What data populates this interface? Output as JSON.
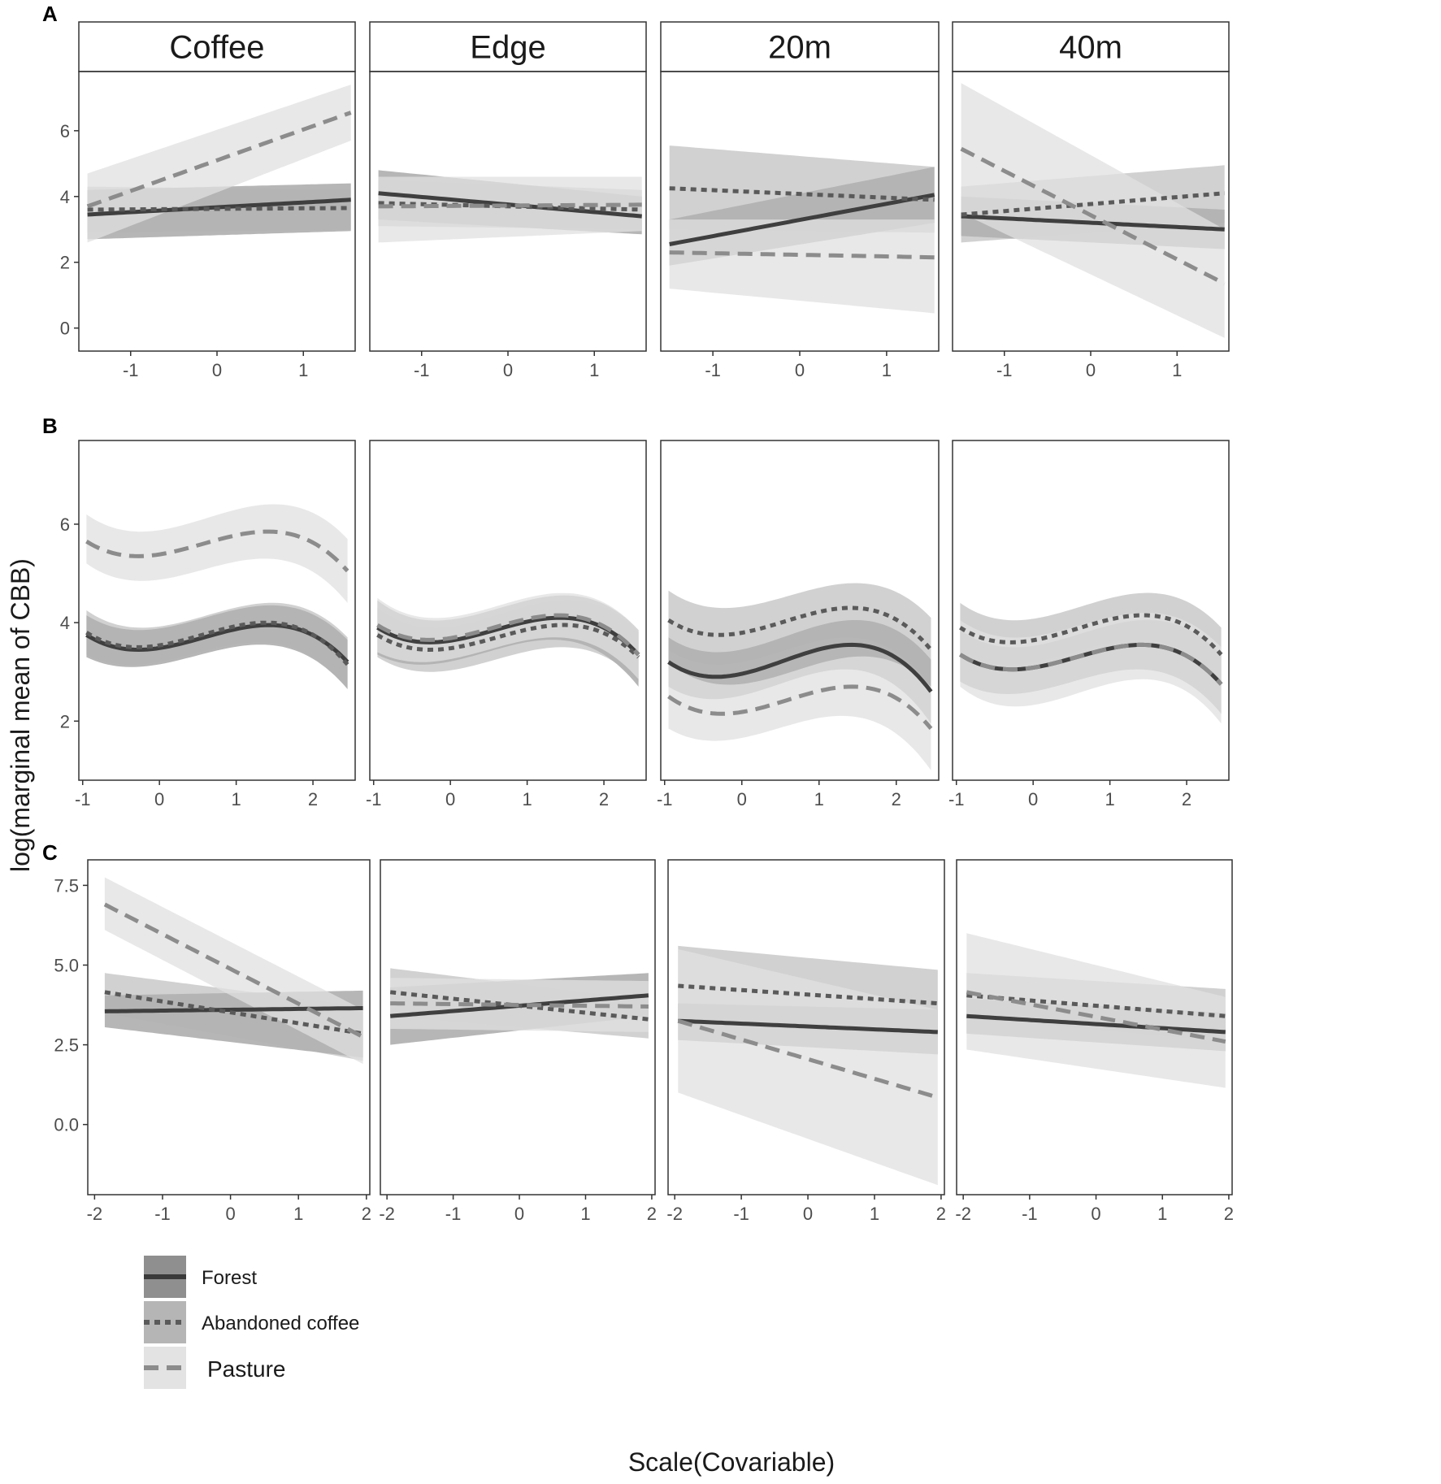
{
  "figure": {
    "ylabel": "log(marginal mean of CBB)",
    "xlabel": "Scale(Covariable)",
    "legend": {
      "items": [
        {
          "label": "Forest",
          "line": "solid",
          "color": "#3a3a3a",
          "band": "#8f8f8f"
        },
        {
          "label": "Abandoned coffee",
          "line": "dotted",
          "color": "#5a5a5a",
          "band": "#b5b5b5"
        },
        {
          "label": "Pasture",
          "line": "dashed",
          "color": "#8c8c8c",
          "band": "#e3e3e3"
        }
      ]
    }
  },
  "chart_data": [
    {
      "row": "A",
      "type": "line",
      "facets": [
        "Coffee",
        "Edge",
        "20m",
        "40m"
      ],
      "xlim": [
        -1.6,
        1.6
      ],
      "xticks": [
        -1,
        0,
        1
      ],
      "ylim": [
        -0.7,
        7.8
      ],
      "yticks": [
        0,
        2,
        4,
        6
      ],
      "shape": "linear",
      "panels": [
        {
          "facet": "Coffee",
          "series": [
            {
              "name": "Forest",
              "x": [
                -1.5,
                1.55
              ],
              "y": [
                3.45,
                3.9
              ],
              "lo": [
                2.7,
                2.95
              ],
              "hi": [
                4.2,
                4.4
              ]
            },
            {
              "name": "Abandoned coffee",
              "x": [
                -1.5,
                1.55
              ],
              "y": [
                3.6,
                3.65
              ],
              "lo": [
                2.9,
                3.0
              ],
              "hi": [
                4.3,
                4.2
              ]
            },
            {
              "name": "Pasture",
              "x": [
                -1.5,
                1.55
              ],
              "y": [
                3.7,
                6.55
              ],
              "lo": [
                2.6,
                5.7
              ],
              "hi": [
                4.7,
                7.4
              ]
            }
          ]
        },
        {
          "facet": "Edge",
          "series": [
            {
              "name": "Forest",
              "x": [
                -1.5,
                1.55
              ],
              "y": [
                4.1,
                3.4
              ],
              "lo": [
                3.3,
                2.85
              ],
              "hi": [
                4.8,
                4.0
              ]
            },
            {
              "name": "Abandoned coffee",
              "x": [
                -1.5,
                1.55
              ],
              "y": [
                3.8,
                3.6
              ],
              "lo": [
                3.1,
                3.0
              ],
              "hi": [
                4.5,
                4.2
              ]
            },
            {
              "name": "Pasture",
              "x": [
                -1.5,
                1.55
              ],
              "y": [
                3.7,
                3.75
              ],
              "lo": [
                2.6,
                2.95
              ],
              "hi": [
                4.6,
                4.6
              ]
            }
          ]
        },
        {
          "facet": "20m",
          "series": [
            {
              "name": "Forest",
              "x": [
                -1.5,
                1.55
              ],
              "y": [
                2.55,
                4.05
              ],
              "lo": [
                1.9,
                3.2
              ],
              "hi": [
                3.3,
                4.9
              ]
            },
            {
              "name": "Abandoned coffee",
              "x": [
                -1.5,
                1.55
              ],
              "y": [
                4.25,
                3.9
              ],
              "lo": [
                3.0,
                2.9
              ],
              "hi": [
                5.55,
                4.9
              ]
            },
            {
              "name": "Pasture",
              "x": [
                -1.5,
                1.55
              ],
              "y": [
                2.3,
                2.15
              ],
              "lo": [
                1.2,
                0.45
              ],
              "hi": [
                3.3,
                3.3
              ]
            }
          ]
        },
        {
          "facet": "40m",
          "series": [
            {
              "name": "Forest",
              "x": [
                -1.5,
                1.55
              ],
              "y": [
                3.4,
                3.0
              ],
              "lo": [
                2.8,
                2.4
              ],
              "hi": [
                4.0,
                3.6
              ]
            },
            {
              "name": "Abandoned coffee",
              "x": [
                -1.5,
                1.55
              ],
              "y": [
                3.45,
                4.1
              ],
              "lo": [
                2.6,
                3.2
              ],
              "hi": [
                4.3,
                4.95
              ]
            },
            {
              "name": "Pasture",
              "x": [
                -1.5,
                1.55
              ],
              "y": [
                5.45,
                1.35
              ],
              "lo": [
                3.5,
                -0.3
              ],
              "hi": [
                7.45,
                3.0
              ]
            }
          ]
        }
      ]
    },
    {
      "row": "B",
      "type": "line",
      "facets": [
        "Coffee",
        "Edge",
        "20m",
        "40m"
      ],
      "xlim": [
        -1.05,
        2.55
      ],
      "xticks": [
        -1,
        0,
        1,
        2
      ],
      "ylim": [
        0.8,
        7.7
      ],
      "yticks": [
        2,
        4,
        6
      ],
      "shape": "cubic",
      "panels": [
        {
          "facet": "Coffee",
          "series": [
            {
              "name": "Forest",
              "x": [
                -0.95,
                -0.3,
                1.4,
                2.45
              ],
              "y": [
                3.75,
                3.45,
                3.95,
                3.2
              ],
              "lo": [
                3.3,
                3.1,
                3.55,
                2.65
              ],
              "hi": [
                4.15,
                3.85,
                4.35,
                3.65
              ]
            },
            {
              "name": "Abandoned coffee",
              "x": [
                -0.95,
                -0.3,
                1.4,
                2.45
              ],
              "y": [
                3.8,
                3.5,
                4.0,
                3.15
              ],
              "lo": [
                3.35,
                3.15,
                3.6,
                2.65
              ],
              "hi": [
                4.25,
                3.9,
                4.4,
                3.7
              ]
            },
            {
              "name": "Pasture",
              "x": [
                -0.95,
                -0.3,
                1.4,
                2.45
              ],
              "y": [
                5.65,
                5.35,
                5.85,
                5.05
              ],
              "lo": [
                5.2,
                4.85,
                5.3,
                4.4
              ],
              "hi": [
                6.2,
                5.85,
                6.4,
                5.7
              ]
            }
          ]
        },
        {
          "facet": "Edge",
          "series": [
            {
              "name": "Forest",
              "x": [
                -0.95,
                -0.3,
                1.4,
                2.45
              ],
              "y": [
                3.9,
                3.6,
                4.1,
                3.35
              ],
              "lo": [
                3.35,
                3.15,
                3.65,
                2.7
              ],
              "hi": [
                4.45,
                4.05,
                4.55,
                3.85
              ]
            },
            {
              "name": "Abandoned coffee",
              "x": [
                -0.95,
                -0.3,
                1.4,
                2.45
              ],
              "y": [
                3.75,
                3.45,
                3.95,
                3.3
              ],
              "lo": [
                3.3,
                3.0,
                3.5,
                2.8
              ],
              "hi": [
                4.3,
                3.9,
                4.45,
                3.8
              ]
            },
            {
              "name": "Pasture",
              "x": [
                -0.95,
                -0.3,
                1.4,
                2.45
              ],
              "y": [
                3.95,
                3.65,
                4.15,
                3.35
              ],
              "lo": [
                3.4,
                3.2,
                3.7,
                2.85
              ],
              "hi": [
                4.5,
                4.1,
                4.6,
                3.85
              ]
            }
          ]
        },
        {
          "facet": "20m",
          "series": [
            {
              "name": "Forest",
              "x": [
                -0.95,
                -0.3,
                1.4,
                2.45
              ],
              "y": [
                3.2,
                2.9,
                3.55,
                2.6
              ],
              "lo": [
                2.7,
                2.45,
                3.05,
                1.95
              ],
              "hi": [
                3.7,
                3.4,
                4.05,
                3.25
              ]
            },
            {
              "name": "Abandoned coffee",
              "x": [
                -0.95,
                -0.3,
                1.4,
                2.45
              ],
              "y": [
                4.05,
                3.75,
                4.3,
                3.45
              ],
              "lo": [
                3.45,
                3.15,
                3.7,
                2.7
              ],
              "hi": [
                4.65,
                4.3,
                4.8,
                4.1
              ]
            },
            {
              "name": "Pasture",
              "x": [
                -0.95,
                -0.3,
                1.4,
                2.45
              ],
              "y": [
                2.5,
                2.15,
                2.7,
                1.85
              ],
              "lo": [
                1.85,
                1.6,
                2.1,
                1.0
              ],
              "hi": [
                3.2,
                2.75,
                3.3,
                2.7
              ]
            }
          ]
        },
        {
          "facet": "40m",
          "series": [
            {
              "name": "Forest",
              "x": [
                -0.95,
                -0.3,
                1.4,
                2.45
              ],
              "y": [
                3.35,
                3.05,
                3.55,
                2.75
              ],
              "lo": [
                2.8,
                2.55,
                3.05,
                2.15
              ],
              "hi": [
                3.85,
                3.5,
                4.05,
                3.35
              ]
            },
            {
              "name": "Abandoned coffee",
              "x": [
                -0.95,
                -0.3,
                1.4,
                2.45
              ],
              "y": [
                3.9,
                3.6,
                4.15,
                3.35
              ],
              "lo": [
                3.4,
                3.15,
                3.65,
                2.8
              ],
              "hi": [
                4.4,
                4.05,
                4.6,
                3.9
              ]
            },
            {
              "name": "Pasture",
              "x": [
                -0.95,
                -0.3,
                1.4,
                2.45
              ],
              "y": [
                3.35,
                3.05,
                3.55,
                2.75
              ],
              "lo": [
                2.7,
                2.3,
                2.85,
                1.95
              ],
              "hi": [
                4.05,
                3.7,
                4.2,
                3.5
              ]
            }
          ]
        }
      ]
    },
    {
      "row": "C",
      "type": "line",
      "facets": [
        "Coffee",
        "Edge",
        "20m",
        "40m"
      ],
      "xlim": [
        -2.1,
        2.05
      ],
      "xticks": [
        -2,
        -1,
        0,
        1,
        2
      ],
      "ylim": [
        -2.2,
        8.3
      ],
      "yticks": [
        0.0,
        2.5,
        5.0,
        7.5
      ],
      "ytick_labels": [
        "0.0",
        "2.5",
        "5.0",
        "7.5"
      ],
      "shape": "linear",
      "panels": [
        {
          "facet": "Coffee",
          "series": [
            {
              "name": "Forest",
              "x": [
                -1.85,
                1.95
              ],
              "y": [
                3.55,
                3.65
              ],
              "lo": [
                3.05,
                2.1
              ],
              "hi": [
                4.05,
                4.2
              ]
            },
            {
              "name": "Abandoned coffee",
              "x": [
                -1.85,
                1.95
              ],
              "y": [
                4.15,
                2.85
              ],
              "lo": [
                3.5,
                2.0
              ],
              "hi": [
                4.75,
                3.7
              ]
            },
            {
              "name": "Pasture",
              "x": [
                -1.85,
                1.95
              ],
              "y": [
                6.9,
                2.75
              ],
              "lo": [
                6.1,
                1.9
              ],
              "hi": [
                7.75,
                3.6
              ]
            }
          ]
        },
        {
          "facet": "Edge",
          "series": [
            {
              "name": "Forest",
              "x": [
                -1.95,
                1.95
              ],
              "y": [
                3.4,
                4.05
              ],
              "lo": [
                2.5,
                3.4
              ],
              "hi": [
                4.3,
                4.75
              ]
            },
            {
              "name": "Abandoned coffee",
              "x": [
                -1.95,
                1.95
              ],
              "y": [
                4.15,
                3.3
              ],
              "lo": [
                3.4,
                2.7
              ],
              "hi": [
                4.9,
                3.9
              ]
            },
            {
              "name": "Pasture",
              "x": [
                -1.95,
                1.95
              ],
              "y": [
                3.8,
                3.7
              ],
              "lo": [
                3.0,
                2.9
              ],
              "hi": [
                4.6,
                4.5
              ]
            }
          ]
        },
        {
          "facet": "20m",
          "series": [
            {
              "name": "Forest",
              "x": [
                -1.95,
                1.95
              ],
              "y": [
                3.25,
                2.9
              ],
              "lo": [
                2.65,
                2.2
              ],
              "hi": [
                3.8,
                3.6
              ]
            },
            {
              "name": "Abandoned coffee",
              "x": [
                -1.95,
                1.95
              ],
              "y": [
                4.35,
                3.8
              ],
              "lo": [
                3.2,
                2.75
              ],
              "hi": [
                5.6,
                4.85
              ]
            },
            {
              "name": "Pasture",
              "x": [
                -1.95,
                1.95
              ],
              "y": [
                3.25,
                0.85
              ],
              "lo": [
                1.0,
                -1.9
              ],
              "hi": [
                5.5,
                3.6
              ]
            }
          ]
        },
        {
          "facet": "40m",
          "series": [
            {
              "name": "Forest",
              "x": [
                -1.95,
                1.95
              ],
              "y": [
                3.4,
                2.9
              ],
              "lo": [
                2.85,
                2.3
              ],
              "hi": [
                3.95,
                3.5
              ]
            },
            {
              "name": "Abandoned coffee",
              "x": [
                -1.95,
                1.95
              ],
              "y": [
                4.05,
                3.4
              ],
              "lo": [
                3.35,
                2.6
              ],
              "hi": [
                4.75,
                4.25
              ]
            },
            {
              "name": "Pasture",
              "x": [
                -1.95,
                1.95
              ],
              "y": [
                4.15,
                2.6
              ],
              "lo": [
                2.35,
                1.15
              ],
              "hi": [
                6.0,
                4.0
              ]
            }
          ]
        }
      ]
    }
  ]
}
